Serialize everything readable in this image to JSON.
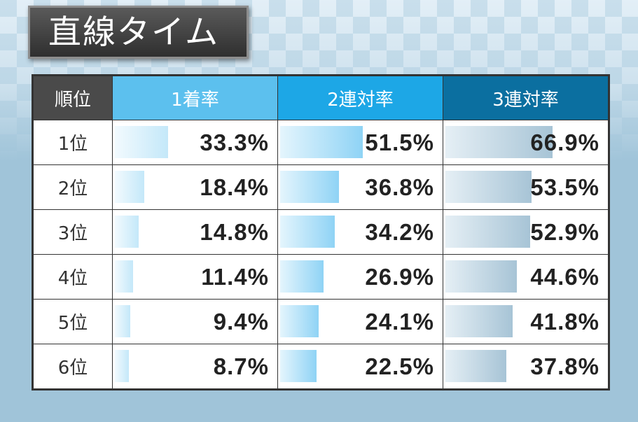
{
  "title": "直線タイム",
  "colors": {
    "rank_header": "#4a4a4a",
    "col1_header": "#5cc0ee",
    "col2_header": "#1da7e6",
    "col3_header": "#0b6fa0"
  },
  "chart_data": {
    "type": "table",
    "title": "直線タイム",
    "row_header_label": "順位",
    "columns": [
      "1着率",
      "2連対率",
      "3連対率"
    ],
    "rows": [
      {
        "label": "1位",
        "values": [
          "33.3%",
          "51.5%",
          "66.9%"
        ],
        "numbers": [
          33.3,
          51.5,
          66.9
        ]
      },
      {
        "label": "2位",
        "values": [
          "18.4%",
          "36.8%",
          "53.5%"
        ],
        "numbers": [
          18.4,
          36.8,
          53.5
        ]
      },
      {
        "label": "3位",
        "values": [
          "14.8%",
          "34.2%",
          "52.9%"
        ],
        "numbers": [
          14.8,
          34.2,
          52.9
        ]
      },
      {
        "label": "4位",
        "values": [
          "11.4%",
          "26.9%",
          "44.6%"
        ],
        "numbers": [
          11.4,
          26.9,
          44.6
        ]
      },
      {
        "label": "5位",
        "values": [
          "9.4%",
          "24.1%",
          "41.8%"
        ],
        "numbers": [
          9.4,
          24.1,
          41.8
        ]
      },
      {
        "label": "6位",
        "values": [
          "8.7%",
          "22.5%",
          "37.8%"
        ],
        "numbers": [
          8.7,
          22.5,
          37.8
        ]
      }
    ]
  }
}
